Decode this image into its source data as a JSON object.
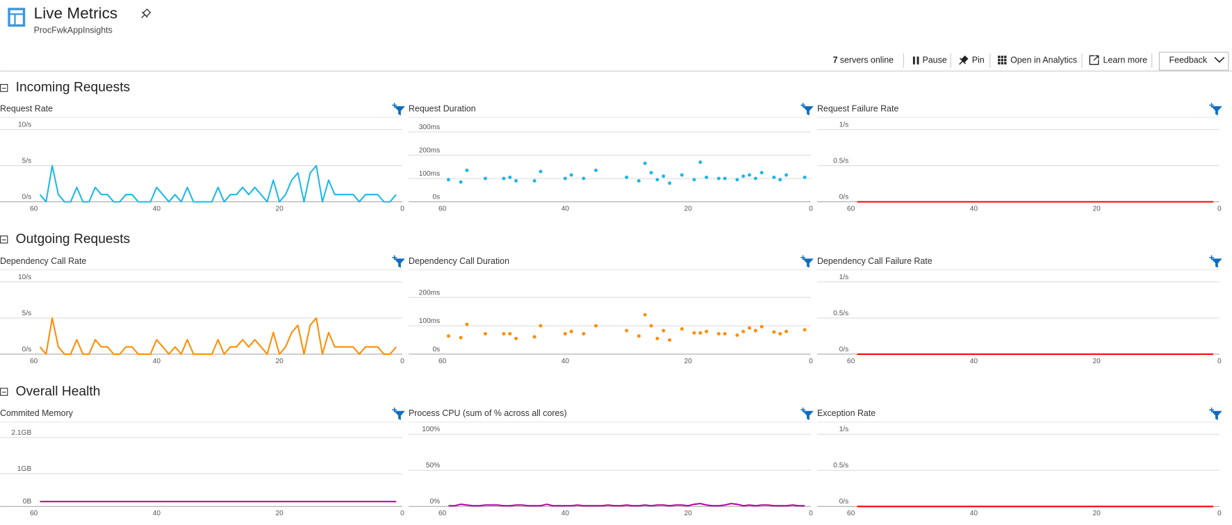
{
  "header": {
    "title": "Live Metrics",
    "subtitle": "ProcFwkAppInsights"
  },
  "toolbar": {
    "servers_count": 7,
    "servers_label": "servers online",
    "pause": "Pause",
    "pin": "Pin",
    "analytics": "Open in Analytics",
    "learn": "Learn more",
    "feedback": "Feedback"
  },
  "sections": [
    "Incoming Requests",
    "Outgoing Requests",
    "Overall Health"
  ],
  "chart_data": [
    {
      "type": "line",
      "title": "Request Rate",
      "color": "#1ab7ea",
      "xlim": [
        60,
        0
      ],
      "xticks": [
        60,
        40,
        20,
        0
      ],
      "ylim": [
        0,
        10
      ],
      "yticks": [
        {
          "value": 0,
          "label": "0/s"
        },
        {
          "value": 5,
          "label": "5/s"
        },
        {
          "value": 10,
          "label": "10/s"
        }
      ],
      "x": [
        59,
        58,
        57,
        56,
        55,
        54,
        53,
        52,
        51,
        50,
        49,
        48,
        47,
        46,
        45,
        44,
        43,
        42,
        41,
        40,
        39,
        38,
        37,
        36,
        35,
        34,
        33,
        32,
        31,
        30,
        29,
        28,
        27,
        26,
        25,
        24,
        23,
        22,
        21,
        20,
        19,
        18,
        17,
        16,
        15,
        14,
        13,
        12,
        11,
        10,
        9,
        8,
        7,
        6,
        5,
        4,
        3,
        2,
        1
      ],
      "values": [
        1,
        0,
        5,
        1,
        0,
        0,
        2,
        0,
        0,
        2,
        1,
        1,
        0,
        0,
        1,
        1,
        0,
        0,
        0,
        2,
        1,
        0,
        1,
        0,
        2,
        0,
        0,
        0,
        0,
        2,
        0,
        1,
        1,
        2,
        1,
        2,
        1,
        0,
        3,
        0,
        1,
        3,
        4,
        0,
        4,
        5,
        0,
        3,
        1,
        1,
        1,
        1,
        0,
        1,
        1,
        1,
        0,
        0,
        1
      ]
    },
    {
      "type": "scatter",
      "title": "Request Duration",
      "color": "#1ab7ea",
      "xlim": [
        60,
        0
      ],
      "xticks": [
        60,
        40,
        20,
        0
      ],
      "ylim": [
        0,
        310
      ],
      "yticks": [
        {
          "value": 0,
          "label": "0s"
        },
        {
          "value": 100,
          "label": "100ms"
        },
        {
          "value": 200,
          "label": "200ms"
        },
        {
          "value": 300,
          "label": "300ms"
        }
      ],
      "x": [
        59,
        57,
        56,
        53,
        50,
        49,
        48,
        45,
        44,
        40,
        39,
        37,
        35,
        30,
        28,
        27,
        26,
        25,
        24,
        23,
        21,
        19,
        18,
        17,
        15,
        14,
        12,
        11,
        10,
        9,
        8,
        6,
        5,
        4,
        1
      ],
      "values": [
        95,
        85,
        135,
        100,
        100,
        105,
        90,
        90,
        130,
        100,
        115,
        100,
        135,
        105,
        90,
        165,
        125,
        95,
        110,
        80,
        115,
        95,
        170,
        105,
        100,
        100,
        95,
        110,
        115,
        100,
        125,
        105,
        95,
        115,
        105
      ]
    },
    {
      "type": "line",
      "title": "Request Failure Rate",
      "color": "#ff0000",
      "xlim": [
        60,
        0
      ],
      "xticks": [
        60,
        40,
        20,
        0
      ],
      "ylim": [
        0,
        1
      ],
      "yticks": [
        {
          "value": 0,
          "label": "0/s"
        },
        {
          "value": 0.5,
          "label": "0.5/s"
        },
        {
          "value": 1,
          "label": "1/s"
        }
      ],
      "x": [
        59,
        1
      ],
      "values": [
        0,
        0
      ]
    },
    {
      "type": "line",
      "title": "Dependency Call Rate",
      "color": "#ff8c00",
      "xlim": [
        60,
        0
      ],
      "xticks": [
        60,
        40,
        20,
        0
      ],
      "ylim": [
        0,
        10
      ],
      "yticks": [
        {
          "value": 0,
          "label": "0/s"
        },
        {
          "value": 5,
          "label": "5/s"
        },
        {
          "value": 10,
          "label": "10/s"
        }
      ],
      "x": [
        59,
        58,
        57,
        56,
        55,
        54,
        53,
        52,
        51,
        50,
        49,
        48,
        47,
        46,
        45,
        44,
        43,
        42,
        41,
        40,
        39,
        38,
        37,
        36,
        35,
        34,
        33,
        32,
        31,
        30,
        29,
        28,
        27,
        26,
        25,
        24,
        23,
        22,
        21,
        20,
        19,
        18,
        17,
        16,
        15,
        14,
        13,
        12,
        11,
        10,
        9,
        8,
        7,
        6,
        5,
        4,
        3,
        2,
        1
      ],
      "values": [
        1,
        0,
        5,
        1,
        0,
        0,
        2,
        0,
        0,
        2,
        1,
        1,
        0,
        0,
        1,
        1,
        0,
        0,
        0,
        2,
        1,
        0,
        1,
        0,
        2,
        0,
        0,
        0,
        0,
        2,
        0,
        1,
        1,
        2,
        1,
        2,
        1,
        0,
        3,
        0,
        1,
        3,
        4,
        0,
        4,
        5,
        0,
        3,
        1,
        1,
        1,
        1,
        0,
        1,
        1,
        1,
        0,
        0,
        1
      ]
    },
    {
      "type": "scatter",
      "title": "Dependency Call Duration",
      "color": "#ff8c00",
      "xlim": [
        60,
        0
      ],
      "xticks": [
        60,
        40,
        20,
        0
      ],
      "ylim": [
        0,
        255
      ],
      "yticks": [
        {
          "value": 0,
          "label": "0s"
        },
        {
          "value": 100,
          "label": "100ms"
        },
        {
          "value": 200,
          "label": "200ms"
        }
      ],
      "x": [
        59,
        57,
        56,
        53,
        50,
        49,
        48,
        45,
        44,
        40,
        39,
        37,
        35,
        30,
        28,
        27,
        26,
        25,
        24,
        23,
        21,
        19,
        18,
        17,
        15,
        14,
        12,
        11,
        10,
        9,
        8,
        6,
        5,
        4,
        1
      ],
      "values": [
        64,
        58,
        105,
        72,
        72,
        72,
        55,
        61,
        100,
        72,
        80,
        72,
        100,
        83,
        64,
        139,
        100,
        55,
        83,
        50,
        89,
        75,
        75,
        80,
        72,
        72,
        67,
        80,
        92,
        83,
        97,
        78,
        72,
        80,
        86
      ]
    },
    {
      "type": "line",
      "title": "Dependency Call Failure Rate",
      "color": "#ff0000",
      "xlim": [
        60,
        0
      ],
      "xticks": [
        60,
        40,
        20,
        0
      ],
      "ylim": [
        0,
        1
      ],
      "yticks": [
        {
          "value": 0,
          "label": "0/s"
        },
        {
          "value": 0.5,
          "label": "0.5/s"
        },
        {
          "value": 1,
          "label": "1/s"
        }
      ],
      "x": [
        59,
        1
      ],
      "values": [
        0,
        0
      ]
    },
    {
      "type": "line",
      "title": "Commited Memory",
      "color": "#b4009e",
      "xlim": [
        60,
        0
      ],
      "xticks": [
        60,
        40,
        20,
        0
      ],
      "ylim": [
        0,
        2.2
      ],
      "yticks": [
        {
          "value": 0,
          "label": "0B"
        },
        {
          "value": 1,
          "label": "1GB"
        },
        {
          "value": 2.1,
          "label": "2.1GB"
        }
      ],
      "x": [
        59,
        1
      ],
      "values": [
        0.15,
        0.15
      ]
    },
    {
      "type": "line",
      "title": "Process CPU (sum of % across all cores)",
      "color": "#b4009e",
      "xlim": [
        60,
        0
      ],
      "xticks": [
        60,
        40,
        20,
        0
      ],
      "ylim": [
        0,
        100
      ],
      "yticks": [
        {
          "value": 0,
          "label": "0%"
        },
        {
          "value": 50,
          "label": "50%"
        },
        {
          "value": 100,
          "label": "100%"
        }
      ],
      "x": [
        59,
        58,
        57,
        56,
        55,
        54,
        53,
        52,
        51,
        50,
        49,
        48,
        47,
        46,
        45,
        44,
        43,
        42,
        41,
        40,
        39,
        38,
        37,
        36,
        35,
        34,
        33,
        32,
        31,
        30,
        29,
        28,
        27,
        26,
        25,
        24,
        23,
        22,
        21,
        20,
        19,
        18,
        17,
        16,
        15,
        14,
        13,
        12,
        11,
        10,
        9,
        8,
        7,
        6,
        5,
        4,
        3,
        2,
        1
      ],
      "values": [
        1,
        1,
        3,
        2,
        1,
        1,
        2,
        2,
        2,
        1,
        1,
        2,
        2,
        1,
        1,
        1,
        3,
        1,
        1,
        1,
        1,
        2,
        1,
        1,
        1,
        1,
        2,
        1,
        1,
        2,
        1,
        1,
        2,
        1,
        2,
        2,
        1,
        2,
        2,
        1,
        3,
        4,
        2,
        1,
        1,
        2,
        4,
        3,
        1,
        2,
        1,
        2,
        2,
        1,
        1,
        1,
        2,
        1,
        1
      ]
    },
    {
      "type": "line",
      "title": "Exception Rate",
      "color": "#ff0000",
      "xlim": [
        60,
        0
      ],
      "xticks": [
        60,
        40,
        20,
        0
      ],
      "ylim": [
        0,
        1
      ],
      "yticks": [
        {
          "value": 0,
          "label": "0/s"
        },
        {
          "value": 0.5,
          "label": "0.5/s"
        },
        {
          "value": 1,
          "label": "1/s"
        }
      ],
      "x": [
        59,
        1
      ],
      "values": [
        0,
        0
      ]
    }
  ]
}
